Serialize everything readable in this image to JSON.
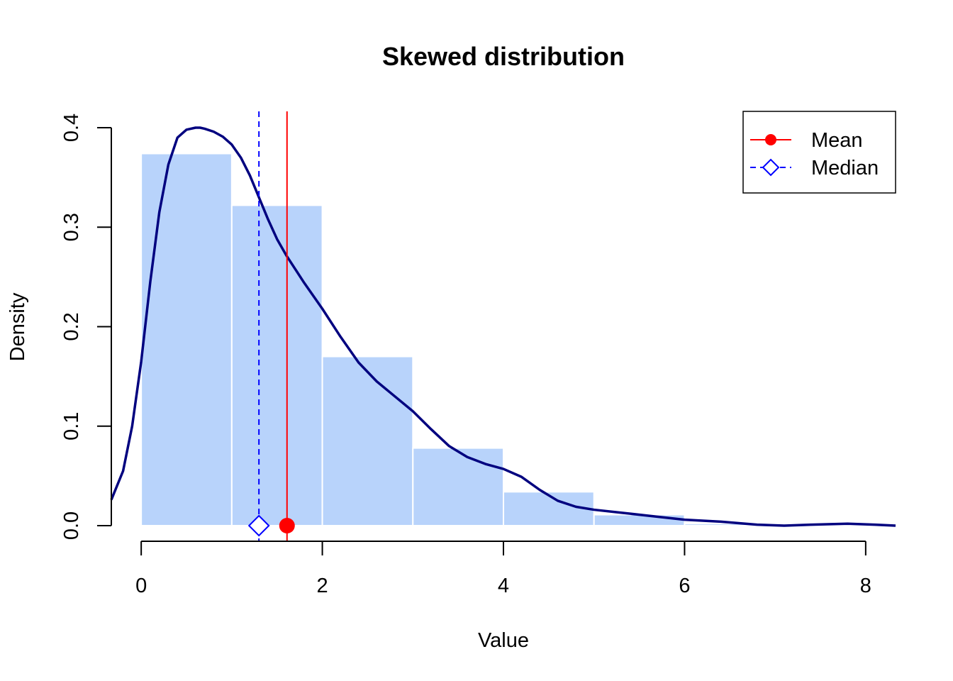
{
  "chart_data": {
    "type": "histogram",
    "title": "Skewed distribution",
    "xlabel": "Value",
    "ylabel": "Density",
    "xlim": [
      -0.33,
      8.33
    ],
    "ylim": [
      0,
      0.4
    ],
    "x_ticks": [
      "0",
      "2",
      "4",
      "6",
      "8"
    ],
    "y_ticks": [
      "0.0",
      "0.1",
      "0.2",
      "0.3",
      "0.4"
    ],
    "grid": false,
    "bins": [
      {
        "start": 0,
        "end": 1,
        "density": 0.374
      },
      {
        "start": 1,
        "end": 2,
        "density": 0.322
      },
      {
        "start": 2,
        "end": 3,
        "density": 0.17
      },
      {
        "start": 3,
        "end": 4,
        "density": 0.078
      },
      {
        "start": 4,
        "end": 5,
        "density": 0.034
      },
      {
        "start": 5,
        "end": 6,
        "density": 0.011
      },
      {
        "start": 6,
        "end": 7,
        "density": 0.002
      },
      {
        "start": 7,
        "end": 8,
        "density": 0.0
      }
    ],
    "density_curve": {
      "x": [
        -0.33,
        -0.2,
        -0.1,
        0.0,
        0.1,
        0.2,
        0.3,
        0.4,
        0.5,
        0.6,
        0.65,
        0.7,
        0.8,
        0.9,
        1.0,
        1.1,
        1.2,
        1.3,
        1.4,
        1.5,
        1.6,
        1.7,
        1.8,
        2.0,
        2.2,
        2.4,
        2.6,
        2.8,
        3.0,
        3.2,
        3.4,
        3.6,
        3.8,
        4.0,
        4.2,
        4.4,
        4.6,
        4.8,
        5.0,
        5.3,
        5.6,
        6.0,
        6.4,
        6.8,
        7.1,
        7.4,
        7.8,
        8.1,
        8.33
      ],
      "y": [
        0.026,
        0.055,
        0.1,
        0.165,
        0.245,
        0.315,
        0.363,
        0.39,
        0.398,
        0.4,
        0.4,
        0.399,
        0.396,
        0.391,
        0.383,
        0.37,
        0.352,
        0.33,
        0.308,
        0.288,
        0.272,
        0.258,
        0.244,
        0.218,
        0.19,
        0.164,
        0.145,
        0.13,
        0.115,
        0.097,
        0.08,
        0.069,
        0.062,
        0.057,
        0.049,
        0.036,
        0.025,
        0.019,
        0.016,
        0.013,
        0.01,
        0.006,
        0.004,
        0.001,
        0.0,
        0.001,
        0.002,
        0.001,
        0.0
      ]
    },
    "mean": {
      "value": 1.61,
      "label": "Mean",
      "color": "#ff0000"
    },
    "median": {
      "value": 1.3,
      "label": "Median",
      "color": "#0000ff"
    },
    "legend_position": "top-right",
    "colors": {
      "bars": "#b8d3fb",
      "bar_border": "#ffffff",
      "curve": "#00007f",
      "mean": "#ff0000",
      "median": "#0000ff"
    }
  }
}
